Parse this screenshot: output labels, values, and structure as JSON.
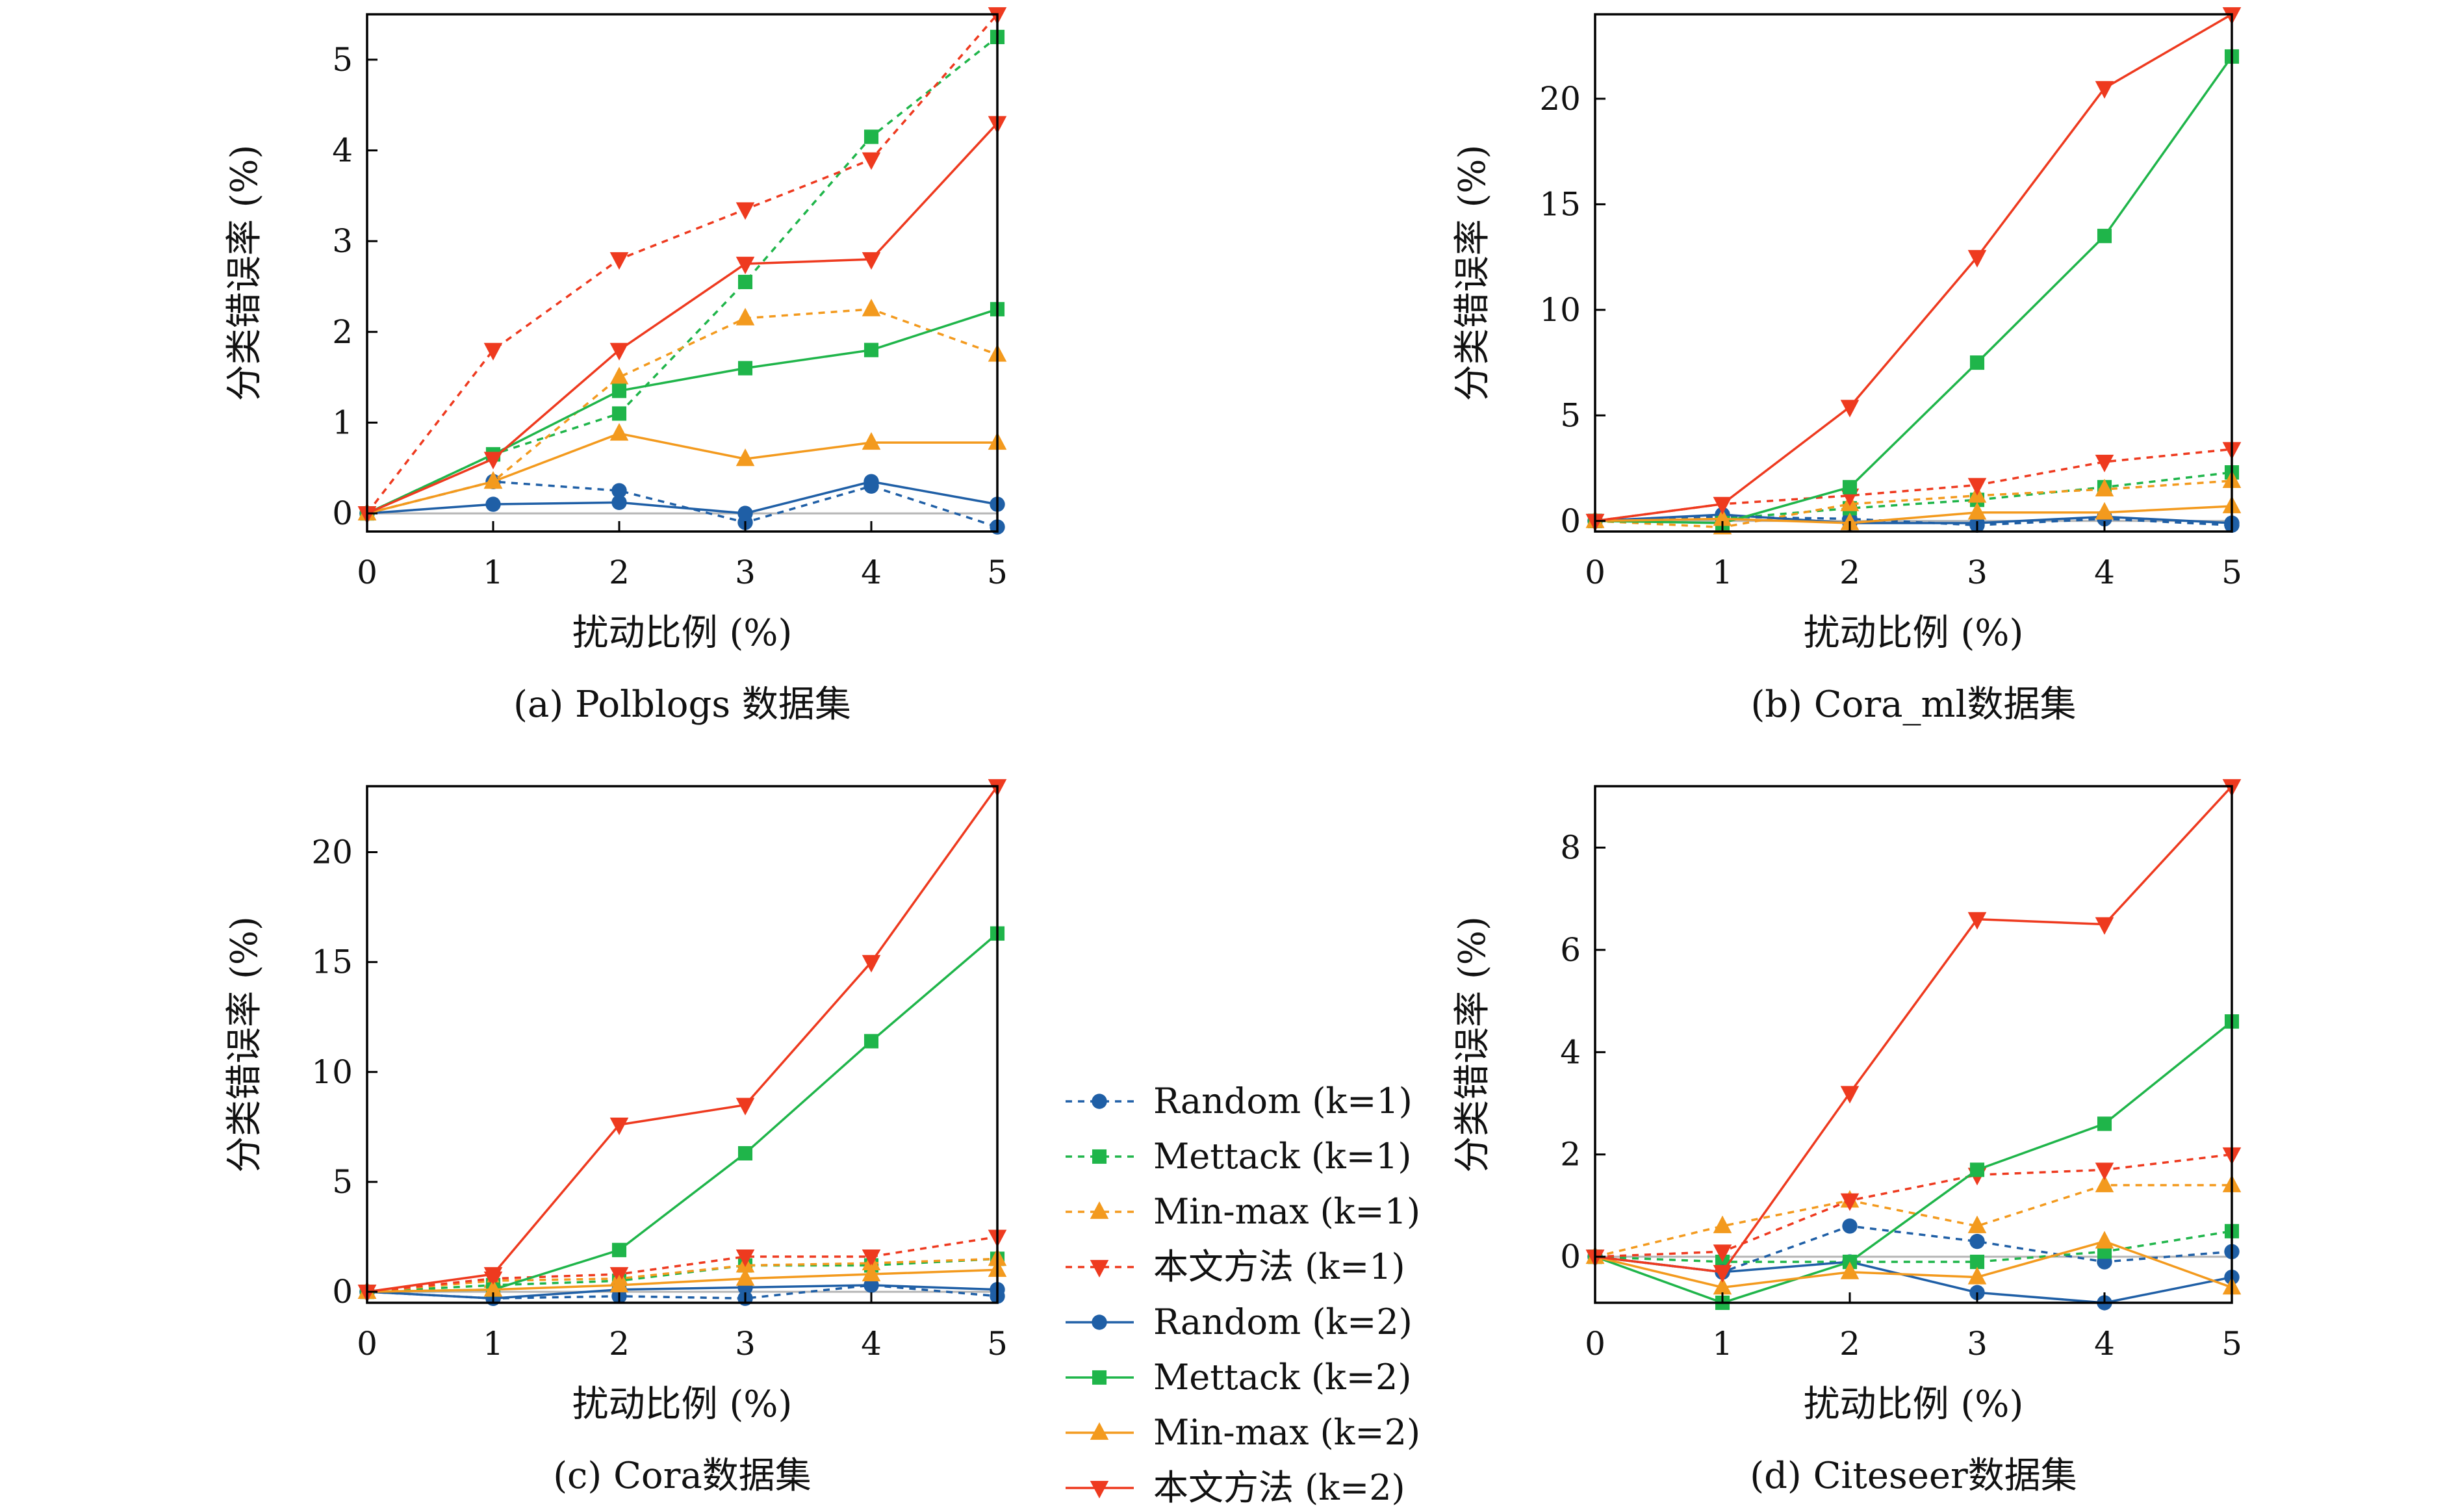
{
  "series_styles": [
    {
      "name": "Random (k=1)",
      "legend": "Random (k=1)",
      "color": "#1f5fa6",
      "marker": "circle",
      "dashed": true
    },
    {
      "name": "Mettack (k=1)",
      "legend": "Mettack (k=1)",
      "color": "#1fb54a",
      "marker": "square",
      "dashed": true
    },
    {
      "name": "Min-max (k=1)",
      "legend": "Min-max (k=1)",
      "color": "#f39a1e",
      "marker": "triangle-up",
      "dashed": true
    },
    {
      "name": "本文方法 (k=1)",
      "legend": "本文方法 (k=1)",
      "color": "#ee3a1f",
      "marker": "triangle-down",
      "dashed": true
    },
    {
      "name": "Random (k=2)",
      "legend": "Random (k=2)",
      "color": "#1f5fa6",
      "marker": "circle",
      "dashed": false
    },
    {
      "name": "Mettack (k=2)",
      "legend": "Mettack (k=2)",
      "color": "#1fb54a",
      "marker": "square",
      "dashed": false
    },
    {
      "name": "Min-max (k=2)",
      "legend": "Min-max (k=2)",
      "color": "#f39a1e",
      "marker": "triangle-up",
      "dashed": false
    },
    {
      "name": "本文方法 (k=2)",
      "legend": "本文方法 (k=2)",
      "color": "#ee3a1f",
      "marker": "triangle-down",
      "dashed": false
    }
  ],
  "chart_data": [
    {
      "type": "line",
      "caption": "(a) Polblogs 数据集",
      "xlabel": "扰动比例 (%)",
      "ylabel": "分类错误率 (%)",
      "x": [
        0,
        1,
        2,
        3,
        4,
        5
      ],
      "xlim": [
        0,
        5
      ],
      "ylim": [
        -0.2,
        5.5
      ],
      "yticks": [
        0,
        1,
        2,
        3,
        4,
        5
      ],
      "zero_line": true,
      "series": [
        {
          "name": "Random (k=1)",
          "values": [
            0,
            0.35,
            0.25,
            -0.1,
            0.3,
            -0.15
          ]
        },
        {
          "name": "Mettack (k=1)",
          "values": [
            0,
            0.65,
            1.1,
            2.55,
            4.15,
            5.25
          ]
        },
        {
          "name": "Min-max (k=1)",
          "values": [
            0,
            0.35,
            1.5,
            2.15,
            2.25,
            1.75
          ]
        },
        {
          "name": "本文方法 (k=1)",
          "values": [
            0,
            1.8,
            2.8,
            3.35,
            3.9,
            5.5
          ]
        },
        {
          "name": "Random (k=2)",
          "values": [
            0,
            0.1,
            0.12,
            0,
            0.35,
            0.1
          ]
        },
        {
          "name": "Mettack (k=2)",
          "values": [
            0,
            0.65,
            1.35,
            1.6,
            1.8,
            2.25
          ]
        },
        {
          "name": "Min-max (k=2)",
          "values": [
            0,
            0.35,
            0.88,
            0.6,
            0.78,
            0.78
          ]
        },
        {
          "name": "本文方法 (k=2)",
          "values": [
            0,
            0.6,
            1.8,
            2.75,
            2.8,
            4.3
          ]
        }
      ]
    },
    {
      "type": "line",
      "caption": "(b) Cora_ml数据集",
      "xlabel": "扰动比例 (%)",
      "ylabel": "分类错误率 (%)",
      "x": [
        0,
        1,
        2,
        3,
        4,
        5
      ],
      "xlim": [
        0,
        5
      ],
      "ylim": [
        -0.5,
        24
      ],
      "yticks": [
        0,
        5,
        10,
        15,
        20
      ],
      "zero_line": true,
      "series": [
        {
          "name": "Random (k=1)",
          "values": [
            0,
            0.2,
            0.1,
            -0.2,
            0.1,
            -0.2
          ]
        },
        {
          "name": "Mettack (k=1)",
          "values": [
            0,
            0.1,
            0.6,
            1.0,
            1.6,
            2.3
          ]
        },
        {
          "name": "Min-max (k=1)",
          "values": [
            0,
            -0.3,
            0.8,
            1.2,
            1.5,
            1.9
          ]
        },
        {
          "name": "本文方法 (k=1)",
          "values": [
            0,
            0.8,
            1.2,
            1.7,
            2.8,
            3.4
          ]
        },
        {
          "name": "Random (k=2)",
          "values": [
            0,
            0.3,
            -0.1,
            -0.1,
            0.2,
            -0.1
          ]
        },
        {
          "name": "Mettack (k=2)",
          "values": [
            0,
            -0.1,
            1.6,
            7.5,
            13.5,
            22.0
          ]
        },
        {
          "name": "Min-max (k=2)",
          "values": [
            0,
            0.1,
            -0.1,
            0.4,
            0.4,
            0.7
          ]
        },
        {
          "name": "本文方法 (k=2)",
          "values": [
            0,
            0.8,
            5.4,
            12.5,
            20.5,
            24.0
          ]
        }
      ]
    },
    {
      "type": "line",
      "caption": "(c) Cora数据集",
      "xlabel": "扰动比例 (%)",
      "ylabel": "分类错误率 (%)",
      "x": [
        0,
        1,
        2,
        3,
        4,
        5
      ],
      "xlim": [
        0,
        5
      ],
      "ylim": [
        -0.5,
        23
      ],
      "yticks": [
        0,
        5,
        10,
        15,
        20
      ],
      "zero_line": true,
      "series": [
        {
          "name": "Random (k=1)",
          "values": [
            0,
            -0.3,
            -0.2,
            -0.3,
            0.3,
            -0.2
          ]
        },
        {
          "name": "Mettack (k=1)",
          "values": [
            0,
            0.3,
            0.5,
            1.2,
            1.2,
            1.5
          ]
        },
        {
          "name": "Min-max (k=1)",
          "values": [
            0,
            0.5,
            0.6,
            1.2,
            1.3,
            1.5
          ]
        },
        {
          "name": "本文方法 (k=1)",
          "values": [
            0,
            0.6,
            0.8,
            1.6,
            1.6,
            2.5
          ]
        },
        {
          "name": "Random (k=2)",
          "values": [
            0,
            -0.3,
            0.1,
            0.2,
            0.3,
            0.1
          ]
        },
        {
          "name": "Mettack (k=2)",
          "values": [
            0,
            0.1,
            1.9,
            6.3,
            11.4,
            16.3
          ]
        },
        {
          "name": "Min-max (k=2)",
          "values": [
            0,
            0.1,
            0.3,
            0.6,
            0.8,
            1.0
          ]
        },
        {
          "name": "本文方法 (k=2)",
          "values": [
            0,
            0.8,
            7.6,
            8.5,
            15.0,
            23.0
          ]
        }
      ]
    },
    {
      "type": "line",
      "caption": "(d) Citeseer数据集",
      "xlabel": "扰动比例 (%)",
      "ylabel": "分类错误率 (%)",
      "x": [
        0,
        1,
        2,
        3,
        4,
        5
      ],
      "xlim": [
        0,
        5
      ],
      "ylim": [
        -0.9,
        9.2
      ],
      "yticks": [
        0,
        2,
        4,
        6,
        8
      ],
      "zero_line": true,
      "series": [
        {
          "name": "Random (k=1)",
          "values": [
            0,
            -0.3,
            0.6,
            0.3,
            -0.1,
            0.1
          ]
        },
        {
          "name": "Mettack (k=1)",
          "values": [
            0,
            -0.1,
            -0.1,
            -0.1,
            0.1,
            0.5
          ]
        },
        {
          "name": "Min-max (k=1)",
          "values": [
            0,
            0.6,
            1.1,
            0.6,
            1.4,
            1.4
          ]
        },
        {
          "name": "本文方法 (k=1)",
          "values": [
            0,
            0.1,
            1.1,
            1.6,
            1.7,
            2.0
          ]
        },
        {
          "name": "Random (k=2)",
          "values": [
            0,
            -0.3,
            -0.1,
            -0.7,
            -0.9,
            -0.4
          ]
        },
        {
          "name": "Mettack (k=2)",
          "values": [
            0,
            -0.9,
            -0.1,
            1.7,
            2.6,
            4.6
          ]
        },
        {
          "name": "Min-max (k=2)",
          "values": [
            0,
            -0.6,
            -0.3,
            -0.4,
            0.3,
            -0.6
          ]
        },
        {
          "name": "本文方法 (k=2)",
          "values": [
            0,
            -0.3,
            3.2,
            6.6,
            6.5,
            9.2
          ]
        }
      ]
    }
  ]
}
